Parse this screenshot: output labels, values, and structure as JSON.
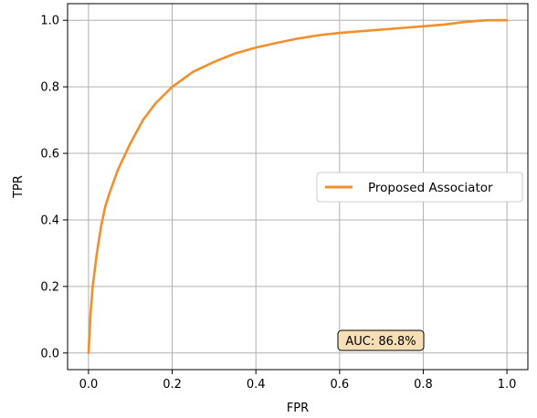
{
  "chart_data": {
    "type": "line",
    "xlabel": "FPR",
    "ylabel": "TPR",
    "xlim": [
      -0.05,
      1.05
    ],
    "ylim": [
      -0.05,
      1.05
    ],
    "xticks": [
      0.0,
      0.2,
      0.4,
      0.6,
      0.8,
      1.0
    ],
    "yticks": [
      0.0,
      0.2,
      0.4,
      0.6,
      0.8,
      1.0
    ],
    "tick_labels_x": [
      "0.0",
      "0.2",
      "0.4",
      "0.6",
      "0.8",
      "1.0"
    ],
    "tick_labels_y": [
      "0.0",
      "0.2",
      "0.4",
      "0.6",
      "0.8",
      "1.0"
    ],
    "grid": true,
    "legend_position": "center-right",
    "series": [
      {
        "name": "Proposed Associator",
        "color": "#f28e2b",
        "x": [
          0.0,
          0.005,
          0.01,
          0.02,
          0.03,
          0.04,
          0.05,
          0.07,
          0.1,
          0.13,
          0.16,
          0.2,
          0.25,
          0.3,
          0.35,
          0.4,
          0.45,
          0.5,
          0.55,
          0.6,
          0.65,
          0.7,
          0.75,
          0.8,
          0.85,
          0.9,
          0.95,
          1.0
        ],
        "y": [
          0.0,
          0.12,
          0.2,
          0.3,
          0.38,
          0.44,
          0.48,
          0.55,
          0.63,
          0.7,
          0.75,
          0.8,
          0.845,
          0.875,
          0.9,
          0.918,
          0.932,
          0.945,
          0.955,
          0.962,
          0.967,
          0.972,
          0.977,
          0.982,
          0.987,
          0.995,
          1.0,
          1.0
        ]
      }
    ],
    "annotation": {
      "text": "AUC: 86.8%",
      "bg": "#f6deb5"
    }
  }
}
